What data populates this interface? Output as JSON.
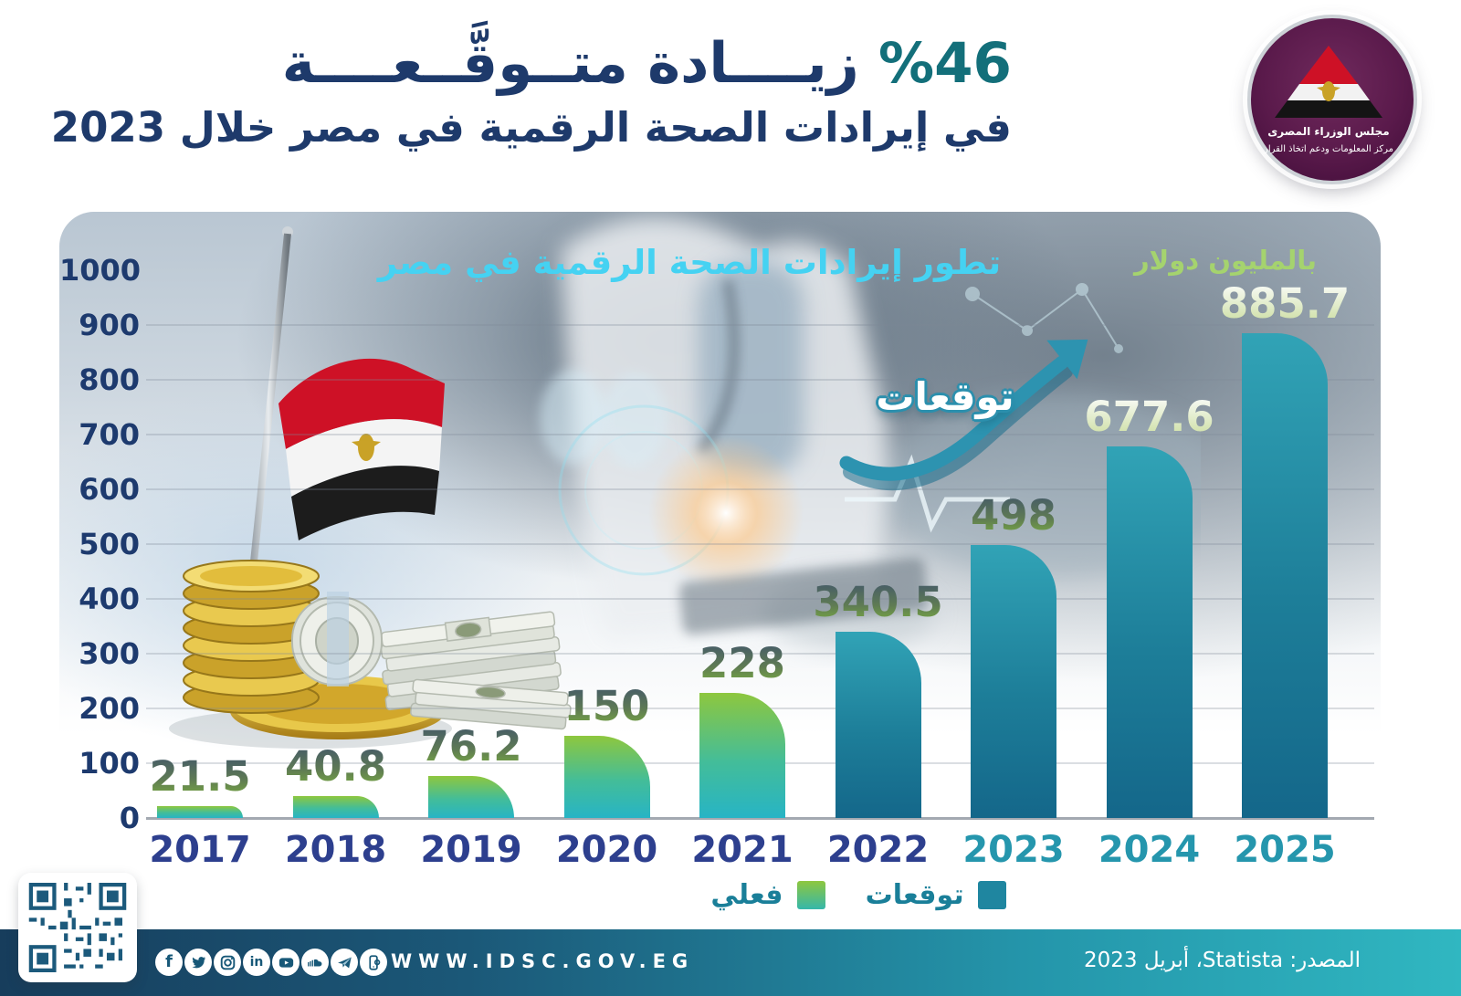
{
  "header": {
    "title_percent": "%46",
    "title_line1_rest": "زيــــادة متــوقَّــعــــة",
    "title_line2": "في إيرادات الصحة الرقمية في مصر خلال 2023"
  },
  "logo": {
    "org_line1": "مجلس الوزراء المصرى",
    "org_line2": "مركز المعلومات ودعم اتخاذ القرار"
  },
  "chart": {
    "title": "تطور إيرادات الصحة الرقمية في مصر",
    "unit_label": "بالمليون دولار",
    "forecast_annotation": "توقعات",
    "legend": [
      {
        "label": "توقعات",
        "type": "forecast"
      },
      {
        "label": "فعلي",
        "type": "actual"
      }
    ]
  },
  "chart_data": {
    "type": "bar",
    "title": "تطور إيرادات الصحة الرقمية في مصر",
    "unit": "بالمليون دولار",
    "categories": [
      "2017",
      "2018",
      "2019",
      "2020",
      "2021",
      "2022",
      "2023",
      "2024",
      "2025"
    ],
    "series": [
      {
        "name": "فعلي",
        "type": "actual",
        "values": [
          21.5,
          40.8,
          76.2,
          150,
          228,
          null,
          null,
          null,
          null
        ]
      },
      {
        "name": "توقعات",
        "type": "forecast",
        "values": [
          null,
          null,
          null,
          null,
          null,
          340.5,
          498,
          677.6,
          885.7
        ]
      }
    ],
    "ylim": [
      0,
      1000
    ],
    "y_tick_step": 100,
    "grid": true,
    "legend_position": "bottom",
    "teal_year_labels": [
      "2023",
      "2024",
      "2025"
    ],
    "light_value_labels": [
      "2024",
      "2025"
    ]
  },
  "palette": {
    "title_navy": "#1e3a6b",
    "percent_teal": "#136f7a",
    "axis_navy": "#1d3a6e",
    "year_navy": "#2d3f8e",
    "year_teal": "#2596ad",
    "chart_title_cyan": "#45d2f2",
    "unit_green": "#a5d36e",
    "legend_teal_text": "#1a7f99",
    "actual_green_top": "#8ec73e",
    "actual_teal_bottom": "#27b4c5",
    "forecast_teal_top": "#31a3b6",
    "forecast_teal_bottom": "#14678a",
    "value_dark_top": "#41566b",
    "value_dark_bottom": "#7cb23e",
    "value_light_top": "#f7faf4",
    "value_light_bottom": "#c9dc9b",
    "footer_dark": "#173d5c",
    "footer_light": "#30b7c1"
  },
  "footer": {
    "website": "WWW.IDSC.GOV.EG",
    "source": "المصدر: Statista، أبريل 2023",
    "icon_glyphs": {
      "facebook": "f",
      "linkedin": "in"
    },
    "social_icons": [
      "facebook-icon",
      "twitter-icon",
      "instagram-icon",
      "linkedin-icon",
      "youtube-icon",
      "soundcloud-icon",
      "telegram-icon",
      "mobile-icon"
    ]
  }
}
